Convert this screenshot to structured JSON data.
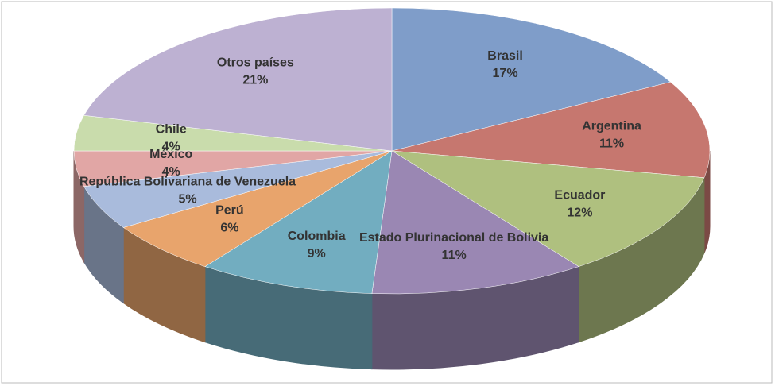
{
  "chart_data": {
    "type": "pie",
    "categories": [
      "Brasil",
      "Argentina",
      "Ecuador",
      "Estado Plurinacional de Bolivia",
      "Colombia",
      "Perú",
      "República Bolivariana de Venezuela",
      "México",
      "Chile",
      "Otros países"
    ],
    "values": [
      17,
      11,
      12,
      11,
      9,
      6,
      5,
      4,
      4,
      21
    ],
    "value_labels": [
      "17%",
      "11%",
      "12%",
      "11%",
      "9%",
      "6%",
      "5%",
      "4%",
      "4%",
      "21%"
    ],
    "colors": [
      "#7f9dc9",
      "#c6776f",
      "#afc07f",
      "#9a87b3",
      "#72adc0",
      "#e8a46c",
      "#a9bbdc",
      "#e1a6a5",
      "#c9dcac",
      "#bdb1d2"
    ]
  }
}
